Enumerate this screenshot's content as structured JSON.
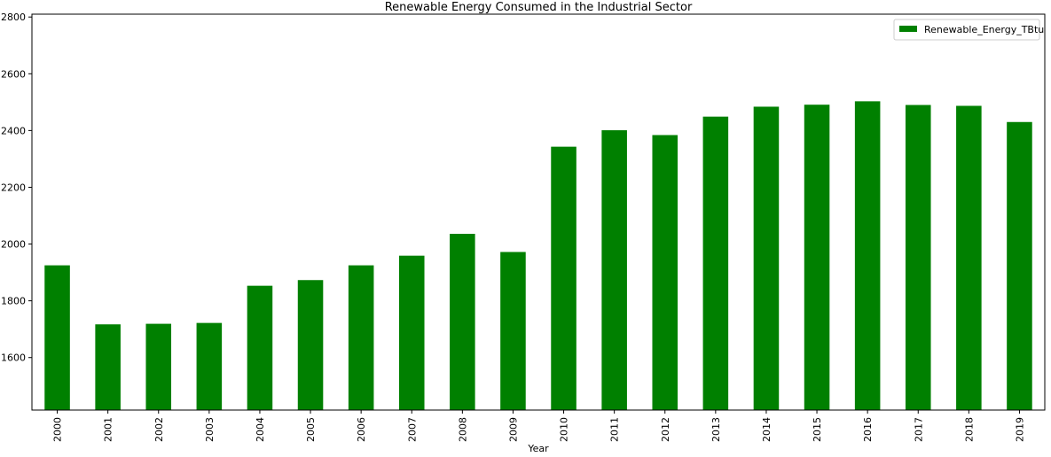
{
  "chart_data": {
    "type": "bar",
    "title": "Renewable Energy Consumed in the Industrial Sector",
    "xlabel": "Year",
    "ylabel": "",
    "categories": [
      "2000",
      "2001",
      "2002",
      "2003",
      "2004",
      "2005",
      "2006",
      "2007",
      "2008",
      "2009",
      "2010",
      "2011",
      "2012",
      "2013",
      "2014",
      "2015",
      "2016",
      "2017",
      "2018",
      "2019"
    ],
    "series": [
      {
        "name": "Renewable_Energy_TBtu",
        "color": "#008000",
        "values": [
          1925,
          1717,
          1719,
          1722,
          1853,
          1873,
          1925,
          1959,
          2036,
          1972,
          2343,
          2401,
          2384,
          2449,
          2484,
          2491,
          2503,
          2490,
          2487,
          2430
        ]
      }
    ],
    "ylim": [
      1415,
      2810
    ],
    "yticks": [
      1600,
      1800,
      2000,
      2200,
      2400,
      2600,
      2800
    ],
    "legend_position": "top-right",
    "grid": false
  }
}
